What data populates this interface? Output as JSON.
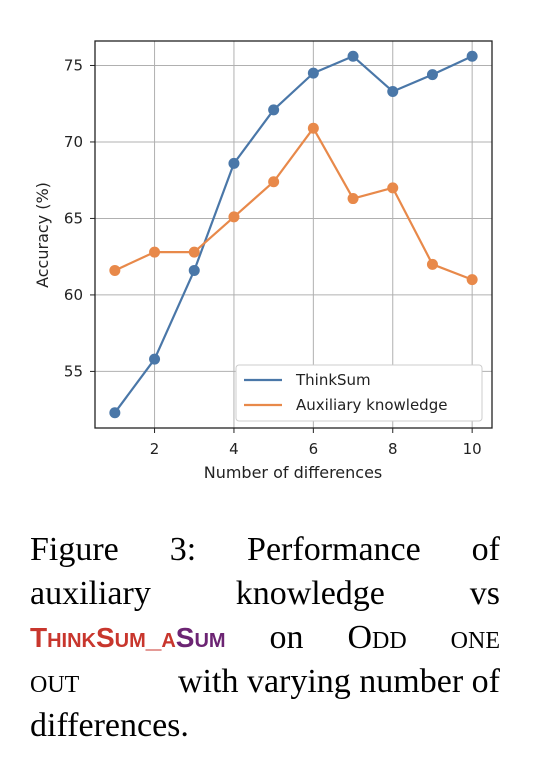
{
  "chart_data": {
    "type": "line",
    "x": [
      1,
      2,
      3,
      4,
      5,
      6,
      7,
      8,
      9,
      10
    ],
    "series": [
      {
        "name": "ThinkSum",
        "color": "#4a77a8",
        "values": [
          52.3,
          55.8,
          61.6,
          68.6,
          72.1,
          74.5,
          75.6,
          73.3,
          74.4,
          75.6
        ]
      },
      {
        "name": "Auxiliary knowledge",
        "color": "#e8894a",
        "values": [
          61.6,
          62.8,
          62.8,
          65.1,
          67.4,
          70.9,
          66.3,
          67.0,
          62.0,
          61.0
        ]
      }
    ],
    "xlabel": "Number of differences",
    "ylabel": "Accuracy (%)",
    "xlim": [
      0.5,
      10.5
    ],
    "ylim": [
      51.3,
      76.6
    ],
    "xticks": [
      2,
      4,
      6,
      8,
      10
    ],
    "yticks": [
      55,
      60,
      65,
      70,
      75
    ],
    "grid": true,
    "legend_position": "lower-right"
  },
  "caption": {
    "line1": [
      "Figure",
      "3:",
      "Performance",
      "of"
    ],
    "line2": [
      "auxiliary",
      "knowledge",
      "vs"
    ],
    "line3": {
      "brand_think": "ThinkSum_a",
      "brand_sum": "Sum",
      "words": [
        "on",
        "Odd",
        "one"
      ]
    },
    "line4": {
      "sc_word": "out",
      "rest": "with varying number of"
    },
    "line5": "differences."
  }
}
